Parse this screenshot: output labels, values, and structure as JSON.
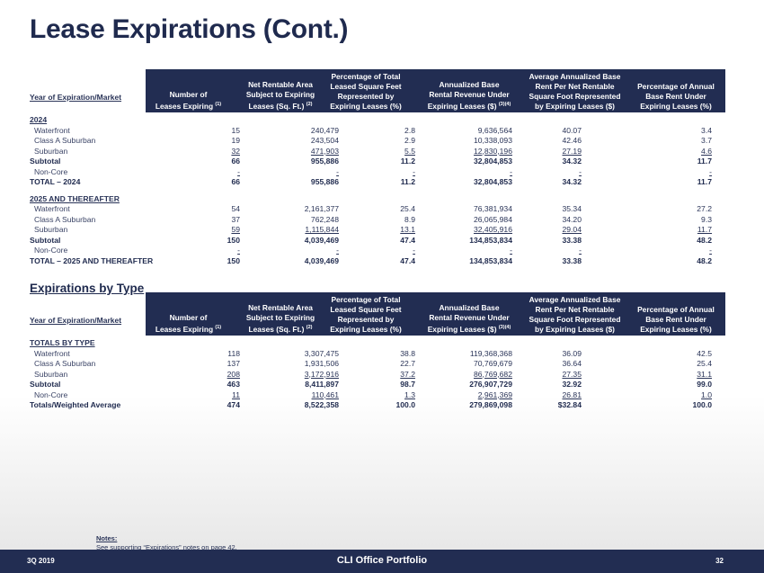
{
  "title": "Lease Expirations (Cont.)",
  "columns": {
    "market": "Year of Expiration/Market",
    "c1": {
      "line1": "Number of",
      "line2": "Leases Expiring",
      "note": "(1)"
    },
    "c2": {
      "line1": "Net Rentable Area",
      "line2": "Subject to Expiring",
      "line3": "Leases (Sq. Ft.)",
      "note": "(2)"
    },
    "c3": {
      "line1": "Percentage of Total",
      "line2": "Leased Square Feet",
      "line3": "Represented by",
      "line4": "Expiring Leases (%)"
    },
    "c4": {
      "line1": "Annualized Base",
      "line2": "Rental Revenue Under",
      "line3": "Expiring Leases ($)",
      "note": "(3)(4)"
    },
    "c5": {
      "line1": "Average Annualized Base",
      "line2": "Rent Per Net Rentable",
      "line3": "Square Foot Represented",
      "line4": "by Expiring Leases ($)"
    },
    "c6": {
      "line1": "Percentage of Annual",
      "line2": "Base Rent Under",
      "line3": "Expiring Leases (%)"
    }
  },
  "table1": {
    "rows": [
      {
        "label": "2024",
        "type": "group",
        "values": [
          "",
          "",
          "",
          "",
          "",
          ""
        ]
      },
      {
        "label": "Waterfront",
        "type": "indent",
        "values": [
          "15",
          "240,479",
          "2.8",
          "9,636,564",
          "40.07",
          "3.4"
        ]
      },
      {
        "label": "Class A Suburban",
        "type": "indent",
        "values": [
          "19",
          "243,504",
          "2.9",
          "10,338,093",
          "42.46",
          "3.7"
        ]
      },
      {
        "label": "Suburban",
        "type": "indent-u",
        "values": [
          "32",
          "471,903",
          "5.5",
          "12,830,196",
          "27.19",
          "4.6"
        ]
      },
      {
        "label": "Subtotal",
        "type": "bold",
        "values": [
          "66",
          "955,886",
          "11.2",
          "32,804,853",
          "34.32",
          "11.7"
        ]
      },
      {
        "label": "Non-Core",
        "type": "indent-u",
        "values": [
          "-",
          "-",
          "-",
          "-",
          "-",
          "-"
        ]
      },
      {
        "label": "TOTAL – 2024",
        "type": "bold",
        "values": [
          "66",
          "955,886",
          "11.2",
          "32,804,853",
          "34.32",
          "11.7"
        ]
      },
      {
        "label": "2025 AND THEREAFTER",
        "type": "group",
        "values": [
          "",
          "",
          "",
          "",
          "",
          ""
        ]
      },
      {
        "label": "Waterfront",
        "type": "indent",
        "values": [
          "54",
          "2,161,377",
          "25.4",
          "76,381,934",
          "35.34",
          "27.2"
        ]
      },
      {
        "label": "Class A Suburban",
        "type": "indent",
        "values": [
          "37",
          "762,248",
          "8.9",
          "26,065,984",
          "34.20",
          "9.3"
        ]
      },
      {
        "label": "Suburban",
        "type": "indent-u",
        "values": [
          "59",
          "1,115,844",
          "13.1",
          "32,405,916",
          "29.04",
          "11.7"
        ]
      },
      {
        "label": "Subtotal",
        "type": "bold",
        "values": [
          "150",
          "4,039,469",
          "47.4",
          "134,853,834",
          "33.38",
          "48.2"
        ]
      },
      {
        "label": "Non-Core",
        "type": "indent-u",
        "values": [
          "-",
          "-",
          "-",
          "-",
          "-",
          "-"
        ]
      },
      {
        "label": "TOTAL – 2025 AND THEREAFTER",
        "type": "bold",
        "values": [
          "150",
          "4,039,469",
          "47.4",
          "134,853,834",
          "33.38",
          "48.2"
        ]
      }
    ]
  },
  "section2_title": "Expirations by Type",
  "table2": {
    "rows": [
      {
        "label": "TOTALS BY TYPE",
        "type": "group",
        "values": [
          "",
          "",
          "",
          "",
          "",
          ""
        ]
      },
      {
        "label": "Waterfront",
        "type": "indent",
        "values": [
          "118",
          "3,307,475",
          "38.8",
          "119,368,368",
          "36.09",
          "42.5"
        ]
      },
      {
        "label": "Class A Suburban",
        "type": "indent",
        "values": [
          "137",
          "1,931,506",
          "22.7",
          "70,769,679",
          "36.64",
          "25.4"
        ]
      },
      {
        "label": "Suburban",
        "type": "indent-u",
        "values": [
          "208",
          "3,172,916",
          "37.2",
          "86,769,682",
          "27.35",
          "31.1"
        ]
      },
      {
        "label": "Subtotal",
        "type": "bold",
        "values": [
          "463",
          "8,411,897",
          "98.7",
          "276,907,729",
          "32.92",
          "99.0"
        ]
      },
      {
        "label": "Non-Core",
        "type": "indent-u",
        "values": [
          "11",
          "110,461",
          "1.3",
          "2,961,369",
          "26.81",
          "1.0"
        ]
      },
      {
        "label": "Totals/Weighted Average",
        "type": "bold",
        "values": [
          "474",
          "8,522,358",
          "100.0",
          "279,869,098",
          "$32.84",
          "100.0"
        ]
      }
    ]
  },
  "notes": {
    "heading": "Notes:",
    "text": "See supporting “Expirations” notes on page 42."
  },
  "footer": {
    "period": "3Q 2019",
    "center": "CLI Office Portfolio",
    "page": "32"
  }
}
